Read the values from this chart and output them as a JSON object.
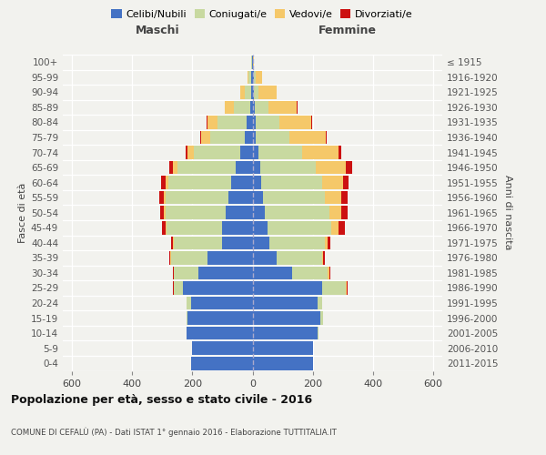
{
  "age_groups": [
    "0-4",
    "5-9",
    "10-14",
    "15-19",
    "20-24",
    "25-29",
    "30-34",
    "35-39",
    "40-44",
    "45-49",
    "50-54",
    "55-59",
    "60-64",
    "65-69",
    "70-74",
    "75-79",
    "80-84",
    "85-89",
    "90-94",
    "95-99",
    "100+"
  ],
  "birth_years": [
    "2011-2015",
    "2006-2010",
    "2001-2005",
    "1996-2000",
    "1991-1995",
    "1986-1990",
    "1981-1985",
    "1976-1980",
    "1971-1975",
    "1966-1970",
    "1961-1965",
    "1956-1960",
    "1951-1955",
    "1946-1950",
    "1941-1945",
    "1936-1940",
    "1931-1935",
    "1926-1930",
    "1921-1925",
    "1916-1920",
    "≤ 1915"
  ],
  "maschi": {
    "celibi": [
      205,
      200,
      220,
      215,
      205,
      230,
      180,
      150,
      100,
      100,
      90,
      80,
      70,
      55,
      40,
      25,
      20,
      8,
      5,
      5,
      2
    ],
    "coniugati": [
      0,
      0,
      0,
      5,
      15,
      30,
      80,
      120,
      160,
      185,
      200,
      210,
      210,
      195,
      155,
      115,
      95,
      55,
      20,
      8,
      2
    ],
    "vedovi": [
      0,
      0,
      0,
      0,
      0,
      2,
      2,
      3,
      3,
      5,
      5,
      5,
      10,
      15,
      20,
      30,
      35,
      30,
      15,
      5,
      1
    ],
    "divorziati": [
      0,
      0,
      0,
      0,
      0,
      2,
      2,
      3,
      8,
      12,
      12,
      15,
      15,
      10,
      8,
      5,
      2,
      0,
      0,
      0,
      0
    ]
  },
  "femmine": {
    "nubili": [
      200,
      200,
      215,
      225,
      215,
      230,
      130,
      80,
      55,
      50,
      40,
      35,
      30,
      25,
      20,
      12,
      10,
      8,
      5,
      5,
      2
    ],
    "coniugate": [
      0,
      0,
      5,
      10,
      15,
      80,
      120,
      150,
      185,
      210,
      215,
      205,
      200,
      185,
      145,
      110,
      80,
      45,
      15,
      5,
      1
    ],
    "vedove": [
      0,
      0,
      0,
      0,
      2,
      3,
      5,
      5,
      10,
      25,
      40,
      55,
      70,
      100,
      120,
      120,
      105,
      95,
      60,
      22,
      2
    ],
    "divorziate": [
      0,
      0,
      0,
      0,
      0,
      2,
      3,
      5,
      8,
      22,
      22,
      20,
      20,
      20,
      10,
      5,
      3,
      2,
      0,
      0,
      0
    ]
  },
  "colors": {
    "celibi": "#4472c4",
    "coniugati": "#c8d9a0",
    "vedovi": "#f5c869",
    "divorziati": "#cc1111"
  },
  "legend_labels": [
    "Celibi/Nubili",
    "Coniugati/e",
    "Vedovi/e",
    "Divorziati/e"
  ],
  "title": "Popolazione per età, sesso e stato civile - 2016",
  "subtitle": "COMUNE DI CEFALÙ (PA) - Dati ISTAT 1° gennaio 2016 - Elaborazione TUTTITALIA.IT",
  "label_maschi": "Maschi",
  "label_femmine": "Femmine",
  "ylabel_left": "Fasce di età",
  "ylabel_right": "Anni di nascita",
  "xlim": 630,
  "xticks": [
    -600,
    -400,
    -200,
    0,
    200,
    400,
    600
  ],
  "bg_color": "#f2f2ee"
}
